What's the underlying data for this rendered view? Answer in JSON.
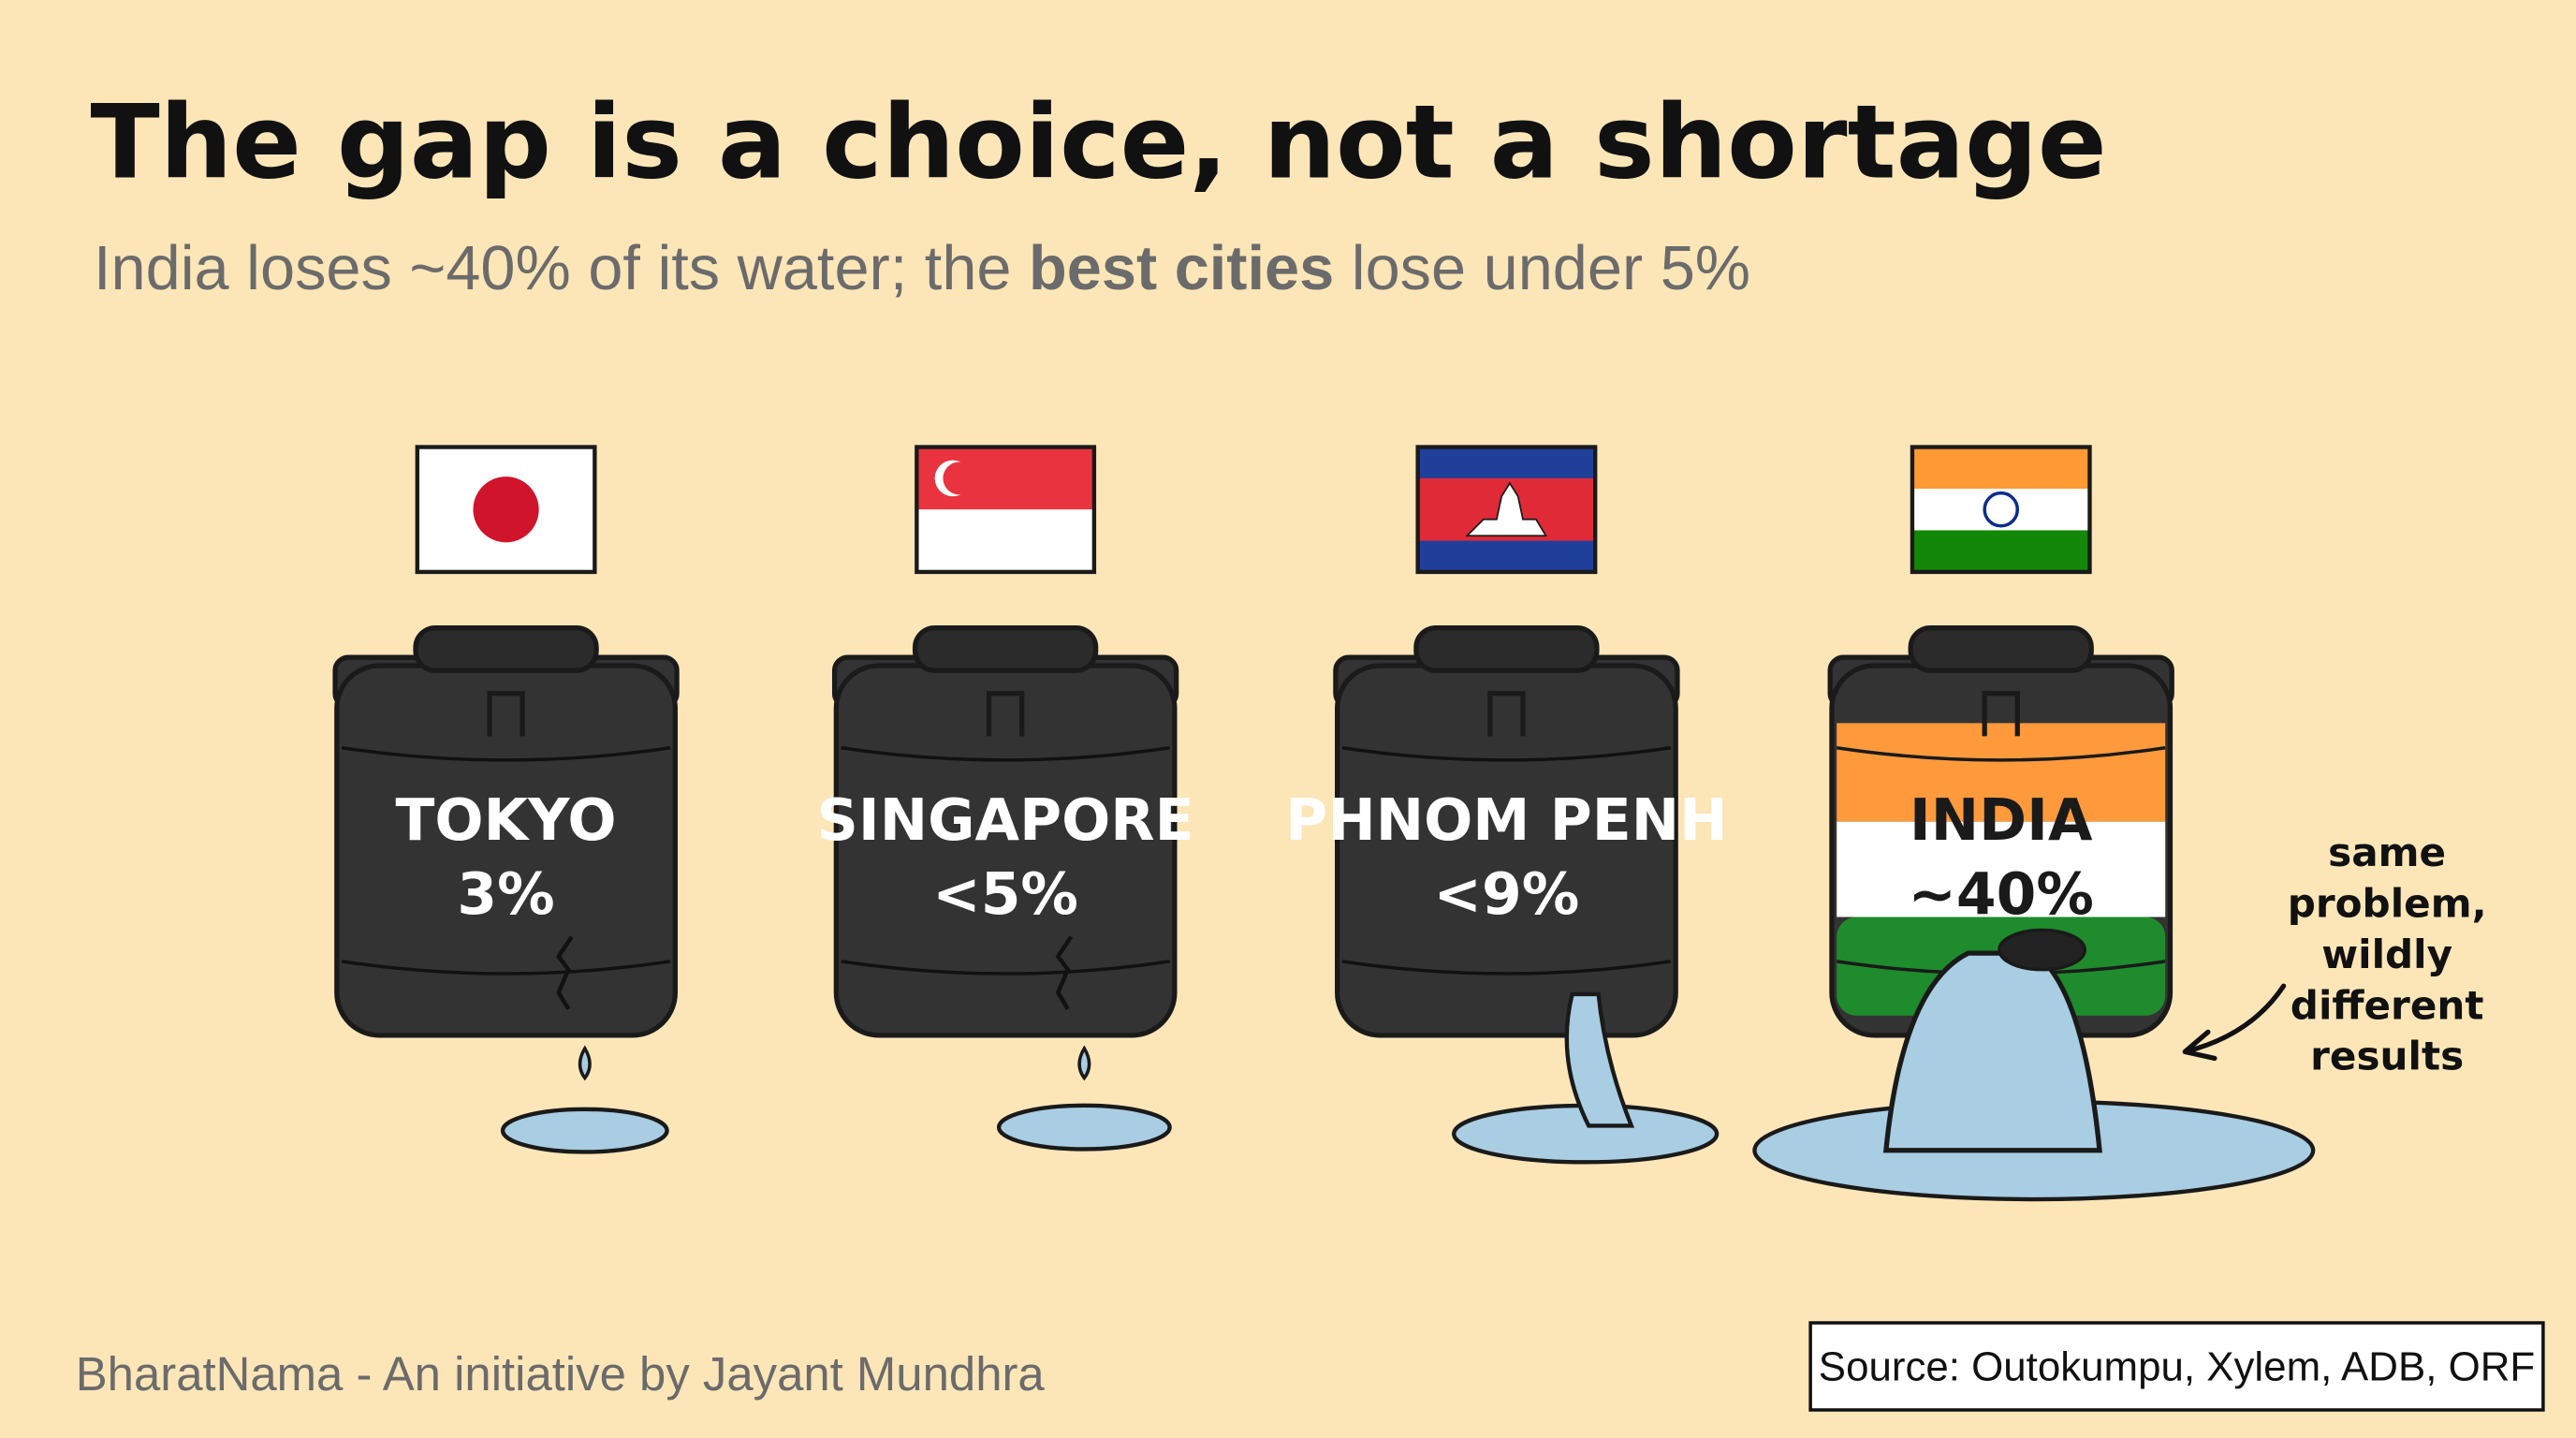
{
  "header": {
    "title": "The gap is a choice, not a shortage",
    "subtitle": {
      "before": "India loses ~40% of its water; the ",
      "emphasis": "best cities",
      "after": " lose under 5%"
    }
  },
  "tanks": [
    {
      "city": "TOKYO",
      "loss": "3%"
    },
    {
      "city": "SINGAPORE",
      "loss": "<5%"
    },
    {
      "city": "PHNOM PENH",
      "loss": "<9%"
    },
    {
      "city": "INDIA",
      "loss": "~40%"
    }
  ],
  "annotation": {
    "lines": [
      "same",
      "problem,",
      "wildly",
      "different",
      "results"
    ]
  },
  "footer": {
    "credit": "BharatNama - An initiative by Jayant Mundhra",
    "source": "Source: Outokumpu, Xylem, ADB, ORF"
  }
}
